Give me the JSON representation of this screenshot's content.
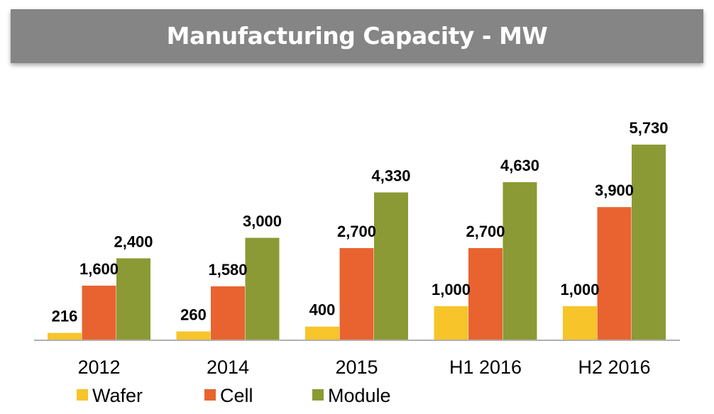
{
  "banner": {
    "title": "Manufacturing Capacity - MW"
  },
  "chart_data": {
    "type": "bar",
    "title": "Manufacturing Capacity - MW",
    "xlabel": "",
    "ylabel": "",
    "ylim": [
      0,
      5730
    ],
    "grid": false,
    "legend_position": "bottom",
    "categories": [
      "2012",
      "2014",
      "2015",
      "H1 2016",
      "H2 2016"
    ],
    "series": [
      {
        "name": "Wafer",
        "color": "#F7C42A",
        "values": [
          216,
          260,
          400,
          1000,
          1000
        ],
        "labels": [
          "216",
          "260",
          "400",
          "1,000",
          "1,000"
        ]
      },
      {
        "name": "Cell",
        "color": "#E8632F",
        "values": [
          1600,
          1580,
          2700,
          2700,
          3900
        ],
        "labels": [
          "1,600",
          "1,580",
          "2,700",
          "2,700",
          "3,900"
        ]
      },
      {
        "name": "Module",
        "color": "#8B9A34",
        "values": [
          2400,
          3000,
          4330,
          4630,
          5730
        ],
        "labels": [
          "2,400",
          "3,000",
          "4,330",
          "4,630",
          "5,730"
        ]
      }
    ]
  }
}
